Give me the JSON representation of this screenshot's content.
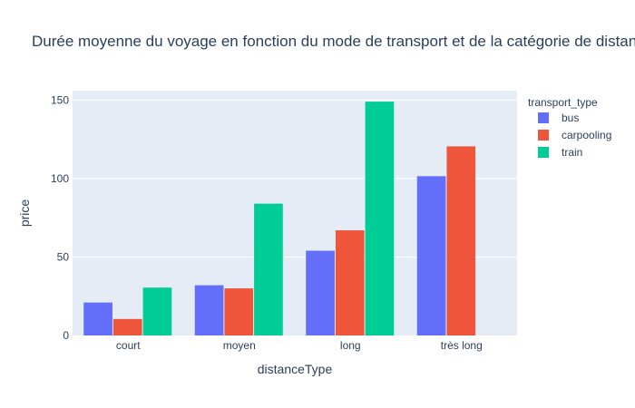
{
  "chart_data": {
    "type": "bar",
    "title": "Durée moyenne du voyage en fonction du mode de transport et de la catégorie de distance",
    "xlabel": "distanceType",
    "ylabel": "price",
    "categories": [
      "court",
      "moyen",
      "long",
      "très long"
    ],
    "ylim": [
      0,
      156
    ],
    "yticks": [
      0,
      50,
      100,
      150
    ],
    "grid": true,
    "legend": {
      "title": "transport_type",
      "position": "top-right"
    },
    "series": [
      {
        "name": "bus",
        "color": "#636efa",
        "values": [
          21,
          32,
          54,
          101.5
        ]
      },
      {
        "name": "carpooling",
        "color": "#ef553b",
        "values": [
          10.5,
          30,
          67,
          120.5
        ]
      },
      {
        "name": "train",
        "color": "#00cc96",
        "values": [
          30.5,
          84,
          149,
          null
        ]
      }
    ]
  }
}
